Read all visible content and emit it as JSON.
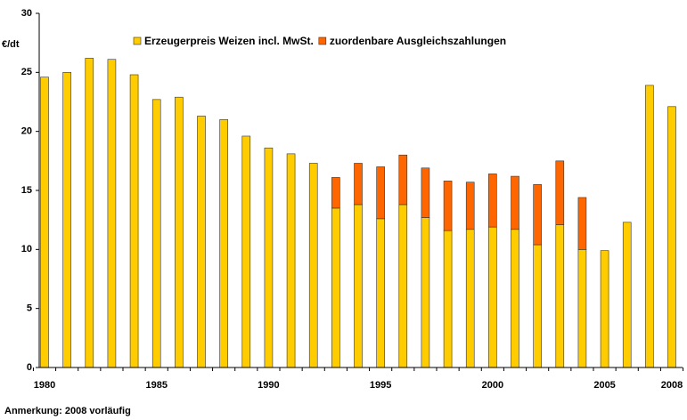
{
  "chart_data": {
    "type": "stacked_bar",
    "y_label": "€/dt",
    "note": "Anmerkung: 2008 vorläufig",
    "categories": [
      "1980",
      null,
      null,
      null,
      null,
      "1985",
      null,
      null,
      null,
      null,
      "1990",
      null,
      null,
      null,
      null,
      "1995",
      null,
      null,
      null,
      null,
      "2000",
      null,
      null,
      null,
      null,
      "2005",
      null,
      null,
      "2008"
    ],
    "series": [
      {
        "name": "Erzeugerpreis Weizen incl. MwSt.",
        "color": "#ffcc00",
        "values": [
          24.6,
          25.0,
          26.2,
          26.1,
          24.8,
          22.7,
          22.9,
          21.3,
          21.0,
          19.6,
          18.6,
          18.1,
          17.3,
          13.5,
          13.8,
          12.6,
          13.8,
          12.7,
          11.6,
          11.7,
          11.9,
          11.7,
          10.4,
          12.1,
          10.0,
          9.9,
          12.3,
          23.9,
          22.1
        ]
      },
      {
        "name": "zuordenbare Ausgleichszahlungen",
        "color": "#ff6600",
        "values": [
          null,
          null,
          null,
          null,
          null,
          null,
          null,
          null,
          null,
          null,
          null,
          null,
          null,
          2.6,
          3.5,
          4.4,
          4.2,
          4.2,
          4.2,
          4.0,
          4.5,
          4.5,
          5.1,
          5.4,
          4.4,
          null,
          null,
          null,
          null
        ]
      }
    ],
    "ylim": [
      0,
      30
    ],
    "yticks": [
      0,
      5,
      10,
      15,
      20,
      25,
      30
    ],
    "grid": false
  }
}
